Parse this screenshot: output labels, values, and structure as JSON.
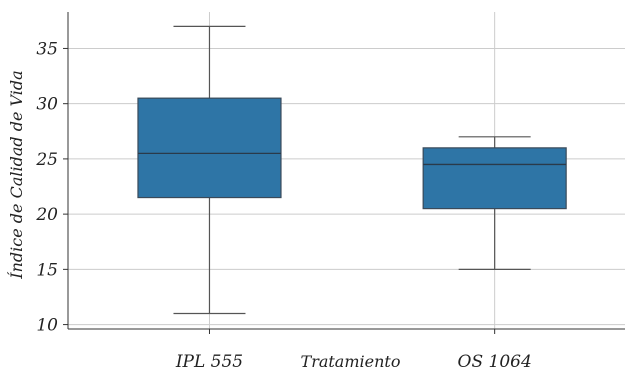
{
  "chart_data": {
    "type": "box",
    "xlabel": "Tratamiento",
    "ylabel": "Índice de Calidad de Vida",
    "categories": [
      "IPL 555",
      "OS 1064"
    ],
    "ylim": [
      9.6,
      38.3
    ],
    "yticks": [
      10,
      15,
      20,
      25,
      30,
      35
    ],
    "grid": true,
    "box_color": "#2e75a6",
    "series": [
      {
        "category": "IPL 555",
        "whisker_low": 11,
        "q1": 21.5,
        "median": 25.5,
        "q3": 30.5,
        "whisker_high": 37
      },
      {
        "category": "OS 1064",
        "whisker_low": 15,
        "q1": 20.5,
        "median": 24.5,
        "q3": 26,
        "whisker_high": 27
      }
    ]
  }
}
